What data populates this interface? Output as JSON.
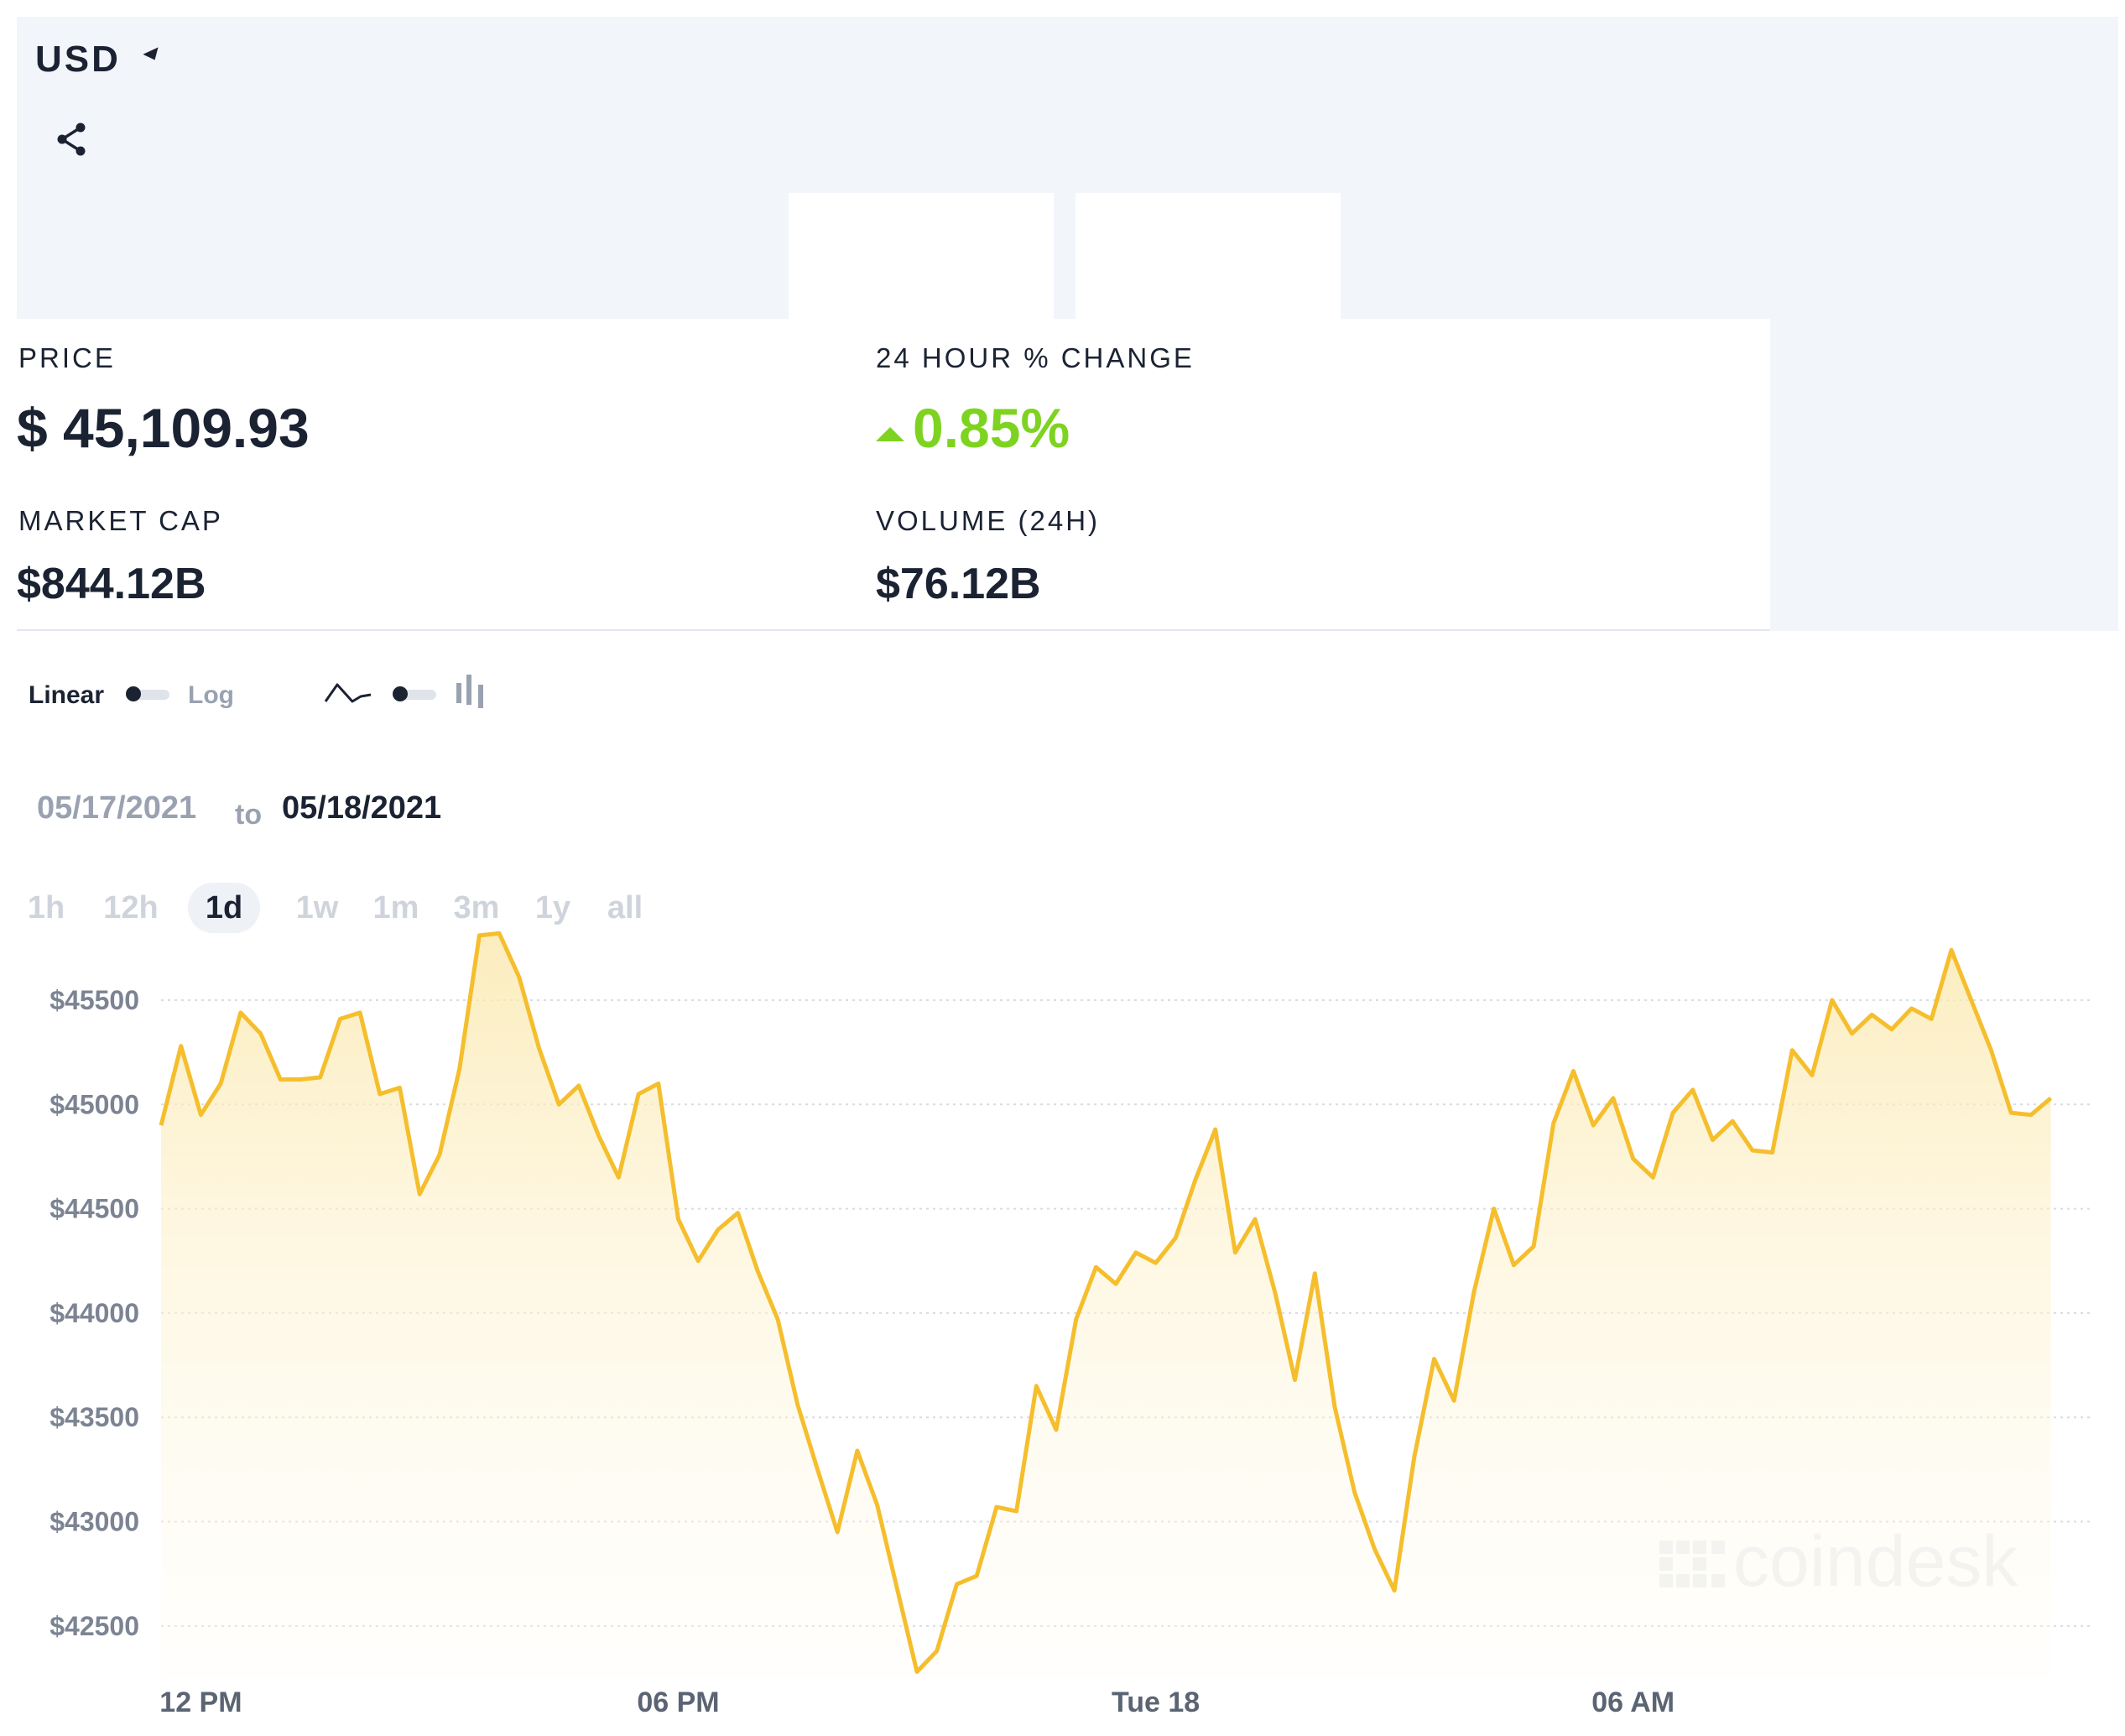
{
  "header": {
    "currency": "USD",
    "icons": {
      "currency_caret": "caret-down-icon",
      "share": "share-icon"
    }
  },
  "stats": {
    "price": {
      "label": "PRICE",
      "value": "$ 45,109.93"
    },
    "change": {
      "label": "24 HOUR % CHANGE",
      "value": "0.85%",
      "direction": "up",
      "color": "#7ed321"
    },
    "market_cap": {
      "label": "MARKET CAP",
      "value": "$844.12B"
    },
    "volume": {
      "label": "VOLUME (24H)",
      "value": "$76.12B"
    }
  },
  "controls": {
    "scale_left": "Linear",
    "scale_right": "Log",
    "chart_type_icons": [
      "line-chart-icon",
      "candlestick-chart-icon"
    ]
  },
  "date_range": {
    "from": "05/17/2021",
    "to_word": "to",
    "to": "05/18/2021"
  },
  "ranges": [
    {
      "label": "1h",
      "active": false
    },
    {
      "label": "12h",
      "active": false
    },
    {
      "label": "1d",
      "active": true
    },
    {
      "label": "1w",
      "active": false
    },
    {
      "label": "1m",
      "active": false
    },
    {
      "label": "3m",
      "active": false
    },
    {
      "label": "1y",
      "active": false
    },
    {
      "label": "all",
      "active": false
    }
  ],
  "watermark": "coindesk",
  "chart_data": {
    "type": "area",
    "line_color": "#f5be2d",
    "y_ticks": [
      {
        "label": "$45500",
        "value": 45500
      },
      {
        "label": "$45000",
        "value": 45000
      },
      {
        "label": "$44500",
        "value": 44500
      },
      {
        "label": "$44000",
        "value": 44000
      },
      {
        "label": "$43500",
        "value": 43500
      },
      {
        "label": "$43000",
        "value": 43000
      },
      {
        "label": "$42500",
        "value": 42500
      }
    ],
    "x_ticks": [
      {
        "label": "12 PM",
        "hours": 0.5
      },
      {
        "label": "06 PM",
        "hours": 6.5
      },
      {
        "label": "Tue 18",
        "hours": 12.5
      },
      {
        "label": "06 AM",
        "hours": 18.5
      }
    ],
    "x_range_hours": [
      0,
      24.25
    ],
    "ylim": [
      42250,
      45870
    ],
    "points": [
      [
        0.0,
        44900
      ],
      [
        0.25,
        45280
      ],
      [
        0.5,
        44950
      ],
      [
        0.75,
        45100
      ],
      [
        1.0,
        45440
      ],
      [
        1.25,
        45340
      ],
      [
        1.5,
        45120
      ],
      [
        1.75,
        45120
      ],
      [
        2.0,
        45130
      ],
      [
        2.25,
        45410
      ],
      [
        2.5,
        45440
      ],
      [
        2.75,
        45050
      ],
      [
        3.0,
        45080
      ],
      [
        3.25,
        44570
      ],
      [
        3.5,
        44760
      ],
      [
        3.75,
        45170
      ],
      [
        4.0,
        45810
      ],
      [
        4.25,
        45820
      ],
      [
        4.5,
        45610
      ],
      [
        4.75,
        45270
      ],
      [
        5.0,
        45000
      ],
      [
        5.25,
        45090
      ],
      [
        5.5,
        44850
      ],
      [
        5.75,
        44650
      ],
      [
        6.0,
        45050
      ],
      [
        6.25,
        45100
      ],
      [
        6.5,
        44450
      ],
      [
        6.75,
        44250
      ],
      [
        7.0,
        44400
      ],
      [
        7.25,
        44480
      ],
      [
        7.5,
        44200
      ],
      [
        7.75,
        43970
      ],
      [
        8.0,
        43560
      ],
      [
        8.25,
        43250
      ],
      [
        8.5,
        42950
      ],
      [
        8.75,
        43340
      ],
      [
        9.0,
        43080
      ],
      [
        9.25,
        42680
      ],
      [
        9.5,
        42280
      ],
      [
        9.75,
        42380
      ],
      [
        10.0,
        42700
      ],
      [
        10.25,
        42740
      ],
      [
        10.5,
        43070
      ],
      [
        10.75,
        43050
      ],
      [
        11.0,
        43650
      ],
      [
        11.25,
        43440
      ],
      [
        11.5,
        43970
      ],
      [
        11.75,
        44220
      ],
      [
        12.0,
        44140
      ],
      [
        12.25,
        44290
      ],
      [
        12.5,
        44240
      ],
      [
        12.75,
        44360
      ],
      [
        13.0,
        44640
      ],
      [
        13.25,
        44880
      ],
      [
        13.5,
        44290
      ],
      [
        13.75,
        44450
      ],
      [
        14.0,
        44100
      ],
      [
        14.25,
        43680
      ],
      [
        14.5,
        44190
      ],
      [
        14.75,
        43550
      ],
      [
        15.0,
        43140
      ],
      [
        15.25,
        42870
      ],
      [
        15.5,
        42670
      ],
      [
        15.75,
        43310
      ],
      [
        16.0,
        43780
      ],
      [
        16.25,
        43580
      ],
      [
        16.5,
        44100
      ],
      [
        16.75,
        44500
      ],
      [
        17.0,
        44230
      ],
      [
        17.25,
        44320
      ],
      [
        17.5,
        44910
      ],
      [
        17.75,
        45160
      ],
      [
        18.0,
        44900
      ],
      [
        18.25,
        45030
      ],
      [
        18.5,
        44740
      ],
      [
        18.75,
        44650
      ],
      [
        19.0,
        44960
      ],
      [
        19.25,
        45070
      ],
      [
        19.5,
        44830
      ],
      [
        19.75,
        44920
      ],
      [
        20.0,
        44780
      ],
      [
        20.25,
        44770
      ],
      [
        20.5,
        45260
      ],
      [
        20.75,
        45140
      ],
      [
        21.0,
        45500
      ],
      [
        21.25,
        45340
      ],
      [
        21.5,
        45430
      ],
      [
        21.75,
        45360
      ],
      [
        22.0,
        45460
      ],
      [
        22.25,
        45410
      ],
      [
        22.5,
        45740
      ],
      [
        22.75,
        45500
      ],
      [
        23.0,
        45260
      ],
      [
        23.25,
        44960
      ],
      [
        23.5,
        44950
      ],
      [
        23.75,
        45030
      ]
    ]
  }
}
